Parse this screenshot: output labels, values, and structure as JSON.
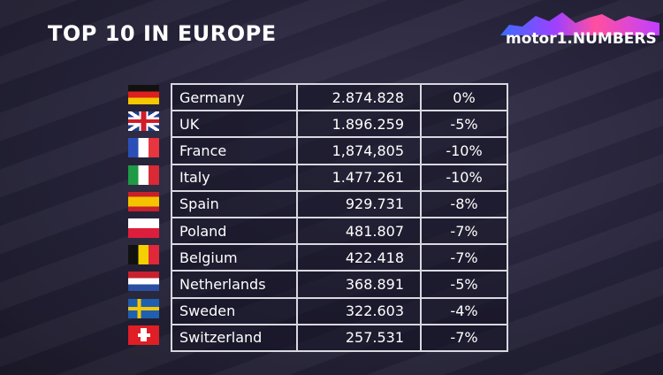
{
  "title": "TOP 10 IN EUROPE",
  "logo": {
    "text": "motor1.NUMBERS"
  },
  "chart_data": {
    "type": "table",
    "title": "TOP 10 IN EUROPE",
    "rows": [
      {
        "flag": "germany-flag",
        "country": "Germany",
        "value": "2.874.828",
        "change": "0%"
      },
      {
        "flag": "uk-flag",
        "country": "UK",
        "value": "1.896.259",
        "change": "-5%"
      },
      {
        "flag": "france-flag",
        "country": "France",
        "value": "1,874,805",
        "change": "-10%"
      },
      {
        "flag": "italy-flag",
        "country": "Italy",
        "value": "1.477.261",
        "change": "-10%"
      },
      {
        "flag": "spain-flag",
        "country": "Spain",
        "value": "929.731",
        "change": "-8%"
      },
      {
        "flag": "poland-flag",
        "country": "Poland",
        "value": "481.807",
        "change": "-7%"
      },
      {
        "flag": "belgium-flag",
        "country": "Belgium",
        "value": "422.418",
        "change": "-7%"
      },
      {
        "flag": "netherlands-flag",
        "country": "Netherlands",
        "value": "368.891",
        "change": "-5%"
      },
      {
        "flag": "sweden-flag",
        "country": "Sweden",
        "value": "322.603",
        "change": "-4%"
      },
      {
        "flag": "switzerland-flag",
        "country": "Switzerland",
        "value": "257.531",
        "change": "-7%"
      }
    ]
  }
}
